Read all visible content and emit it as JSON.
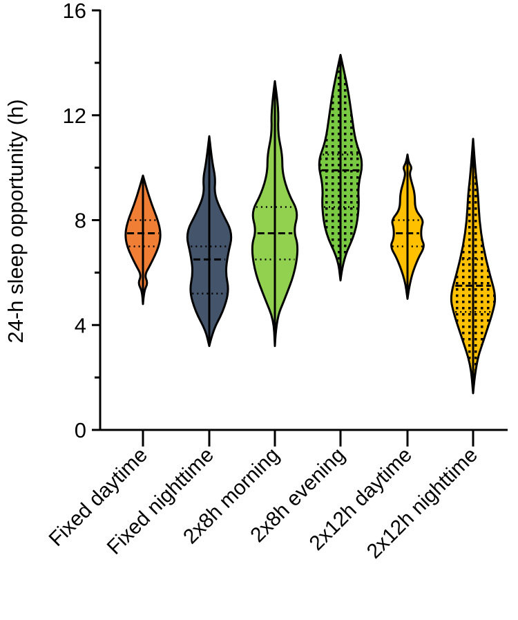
{
  "chart_data": {
    "type": "violin",
    "title": "",
    "xlabel": "",
    "ylabel": "24-h sleep opportunity (h)",
    "ylim": [
      0,
      16
    ],
    "yticks": [
      0,
      4,
      8,
      12,
      16
    ],
    "ytick_labels": [
      "0",
      "4",
      "8",
      "12",
      "16"
    ],
    "grid": false,
    "categories": [
      "Fixed daytime",
      "Fixed nighttime",
      "2x8h morning",
      "2x8h evening",
      "2x12h daytime",
      "2x12h nighttime"
    ],
    "series": [
      {
        "name": "Fixed daytime",
        "color": "#F07F35",
        "pattern": "none",
        "min": 4.8,
        "max": 9.7,
        "q1": 7.0,
        "median": 7.5,
        "q3": 8.0,
        "density": [
          [
            4.8,
            0
          ],
          [
            5.3,
            0.04
          ],
          [
            5.6,
            0.2
          ],
          [
            5.9,
            0.06
          ],
          [
            6.3,
            0.3
          ],
          [
            7.0,
            0.65
          ],
          [
            7.5,
            0.72
          ],
          [
            8.0,
            0.6
          ],
          [
            8.6,
            0.35
          ],
          [
            9.2,
            0.15
          ],
          [
            9.7,
            0
          ]
        ]
      },
      {
        "name": "Fixed nighttime",
        "color": "#44546A",
        "pattern": "none",
        "min": 3.2,
        "max": 11.2,
        "q1": 5.2,
        "median": 6.5,
        "q3": 7.0,
        "density": [
          [
            3.2,
            0
          ],
          [
            3.8,
            0.15
          ],
          [
            4.5,
            0.55
          ],
          [
            5.3,
            0.8
          ],
          [
            6.0,
            0.65
          ],
          [
            6.7,
            0.75
          ],
          [
            7.5,
            0.95
          ],
          [
            8.3,
            0.5
          ],
          [
            9.0,
            0.2
          ],
          [
            9.6,
            0.25
          ],
          [
            10.2,
            0.12
          ],
          [
            11.2,
            0
          ]
        ]
      },
      {
        "name": "2x8h morning",
        "color": "#92D050",
        "pattern": "none",
        "min": 3.2,
        "max": 13.3,
        "q1": 6.5,
        "median": 7.5,
        "q3": 8.5,
        "density": [
          [
            3.2,
            0
          ],
          [
            4.2,
            0.05
          ],
          [
            5.0,
            0.4
          ],
          [
            6.0,
            0.8
          ],
          [
            7.0,
            0.95
          ],
          [
            7.6,
            0.75
          ],
          [
            8.3,
            0.95
          ],
          [
            9.0,
            0.55
          ],
          [
            9.8,
            0.3
          ],
          [
            10.5,
            0.3
          ],
          [
            11.3,
            0.12
          ],
          [
            12.2,
            0.15
          ],
          [
            13.3,
            0
          ]
        ]
      },
      {
        "name": "2x8h evening",
        "color": "#7AC943",
        "pattern": "dots",
        "min": 5.7,
        "max": 14.3,
        "q1": 8.5,
        "median": 9.9,
        "q3": 10.5,
        "density": [
          [
            5.7,
            0
          ],
          [
            6.5,
            0.1
          ],
          [
            7.5,
            0.6
          ],
          [
            8.5,
            0.75
          ],
          [
            9.3,
            0.7
          ],
          [
            10.2,
            0.92
          ],
          [
            11.0,
            0.6
          ],
          [
            12.0,
            0.45
          ],
          [
            13.0,
            0.3
          ],
          [
            14.3,
            0
          ]
        ]
      },
      {
        "name": "2x12h daytime",
        "color": "#FFC000",
        "pattern": "none",
        "min": 5.0,
        "max": 10.5,
        "q1": 7.0,
        "median": 7.5,
        "q3": 8.0,
        "density": [
          [
            5.0,
            0
          ],
          [
            5.7,
            0.1
          ],
          [
            6.5,
            0.4
          ],
          [
            7.0,
            0.7
          ],
          [
            7.3,
            0.55
          ],
          [
            7.7,
            0.55
          ],
          [
            8.0,
            0.65
          ],
          [
            8.4,
            0.3
          ],
          [
            9.0,
            0.3
          ],
          [
            9.5,
            0.15
          ],
          [
            9.8,
            0.08
          ],
          [
            10.0,
            0.18
          ],
          [
            10.2,
            0.05
          ],
          [
            10.5,
            0
          ]
        ]
      },
      {
        "name": "2x12h nighttime",
        "color": "#FFC000",
        "pattern": "dots",
        "min": 1.4,
        "max": 11.1,
        "q1": 4.5,
        "median": 5.5,
        "q3": 6.5,
        "density": [
          [
            1.4,
            0
          ],
          [
            2.5,
            0.1
          ],
          [
            3.5,
            0.45
          ],
          [
            4.5,
            0.8
          ],
          [
            5.1,
            0.92
          ],
          [
            6.0,
            0.65
          ],
          [
            7.0,
            0.4
          ],
          [
            8.0,
            0.25
          ],
          [
            9.0,
            0.2
          ],
          [
            9.8,
            0.1
          ],
          [
            11.1,
            0
          ]
        ]
      }
    ]
  }
}
